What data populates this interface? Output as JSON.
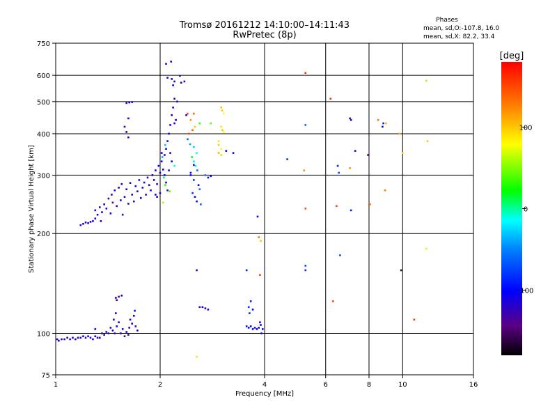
{
  "chart_data": {
    "type": "scatter",
    "title": "Tromsø 20161212 14:10:00–14:11:43",
    "subtitle": "RwPretec (8p)",
    "xlabel": "Frequency [MHz]",
    "ylabel": "Stationary phase Virtual Height [km]",
    "x_scale": "log",
    "y_scale": "log",
    "xlim": [
      1,
      16
    ],
    "ylim": [
      75,
      750
    ],
    "x_ticks": [
      1,
      2,
      4,
      6,
      8,
      10,
      16
    ],
    "x_tick_labels": [
      "1",
      "2",
      "4",
      "6",
      "8",
      "10",
      "16"
    ],
    "y_ticks": [
      75,
      100,
      200,
      300,
      400,
      500,
      600,
      750
    ],
    "y_tick_labels": [
      "75",
      "100",
      "200",
      "300",
      "400",
      "500",
      "600",
      "750"
    ],
    "grid": true,
    "phases_box": {
      "title": "Phases",
      "line1": "mean, sd,O:-107.8, 16.0",
      "line2": "mean, sd,X:  82.2, 33.4"
    },
    "colorbar": {
      "label": "[deg]",
      "range": [
        -180,
        180
      ],
      "ticks": [
        100,
        0,
        -100
      ],
      "tick_labels": [
        "100",
        "0",
        "-100"
      ]
    },
    "series": [
      {
        "points": [
          [
            1.01,
            96,
            -112
          ],
          [
            1.02,
            95,
            -118
          ],
          [
            1.04,
            96,
            -108
          ],
          [
            1.06,
            96,
            -120
          ],
          [
            1.08,
            97,
            -115
          ],
          [
            1.1,
            96,
            -110
          ],
          [
            1.12,
            97,
            -122
          ],
          [
            1.14,
            96,
            -105
          ],
          [
            1.16,
            97,
            -118
          ],
          [
            1.18,
            97,
            -112
          ],
          [
            1.2,
            98,
            -108
          ],
          [
            1.22,
            97,
            -125
          ],
          [
            1.24,
            98,
            -115
          ],
          [
            1.26,
            97,
            -110
          ],
          [
            1.28,
            96,
            -118
          ],
          [
            1.3,
            98,
            -112
          ],
          [
            1.32,
            97,
            -108
          ],
          [
            1.34,
            97,
            -120
          ],
          [
            1.3,
            103,
            -112
          ],
          [
            1.36,
            100,
            -115
          ],
          [
            1.38,
            99,
            -118
          ],
          [
            1.4,
            101,
            -110
          ],
          [
            1.42,
            100,
            -122
          ],
          [
            1.44,
            104,
            -116
          ],
          [
            1.46,
            102,
            -108
          ],
          [
            1.47,
            110,
            -125
          ],
          [
            1.48,
            100,
            -130
          ],
          [
            1.49,
            115,
            -112
          ],
          [
            1.5,
            105,
            -106
          ],
          [
            1.52,
            108,
            -115
          ],
          [
            1.54,
            100,
            -118
          ],
          [
            1.56,
            103,
            -110
          ],
          [
            1.58,
            98,
            -120
          ],
          [
            1.6,
            101,
            -112
          ],
          [
            1.62,
            99,
            -126
          ],
          [
            1.63,
            104,
            -116
          ],
          [
            1.64,
            110,
            -108
          ],
          [
            1.66,
            107,
            -112
          ],
          [
            1.68,
            113,
            -102
          ],
          [
            1.69,
            117,
            -98
          ],
          [
            1.7,
            105,
            -118
          ],
          [
            1.72,
            102,
            -110
          ],
          [
            1.49,
            128,
            -112
          ],
          [
            1.5,
            126,
            -150
          ],
          [
            1.52,
            129,
            -130
          ],
          [
            1.55,
            130,
            -108
          ]
        ]
      },
      {
        "points": [
          [
            1.18,
            212,
            -115
          ],
          [
            1.2,
            214,
            -110
          ],
          [
            1.22,
            216,
            -118
          ],
          [
            1.24,
            215,
            -120
          ],
          [
            1.26,
            217,
            -112
          ],
          [
            1.28,
            218,
            -108
          ],
          [
            1.3,
            222,
            -115
          ],
          [
            1.3,
            235,
            -120
          ],
          [
            1.32,
            228,
            -112
          ],
          [
            1.34,
            240,
            -125
          ],
          [
            1.35,
            218,
            -118
          ],
          [
            1.36,
            232,
            -110
          ],
          [
            1.38,
            245,
            -118
          ],
          [
            1.4,
            238,
            -130
          ],
          [
            1.42,
            255,
            -112
          ],
          [
            1.44,
            230,
            -105
          ],
          [
            1.45,
            262,
            -118
          ],
          [
            1.46,
            248,
            -140
          ],
          [
            1.48,
            270,
            -115
          ],
          [
            1.5,
            242,
            -122
          ],
          [
            1.52,
            275,
            -110
          ],
          [
            1.54,
            252,
            -118
          ],
          [
            1.55,
            282,
            -108
          ],
          [
            1.56,
            228,
            -120
          ],
          [
            1.58,
            258,
            -115
          ],
          [
            1.6,
            272,
            -112
          ],
          [
            1.62,
            246,
            -125
          ],
          [
            1.64,
            284,
            -110
          ],
          [
            1.66,
            262,
            -118
          ],
          [
            1.68,
            250,
            -122
          ],
          [
            1.7,
            278,
            -105
          ],
          [
            1.72,
            268,
            -116
          ],
          [
            1.74,
            290,
            -112
          ],
          [
            1.76,
            256,
            -118
          ],
          [
            1.78,
            275,
            -108
          ],
          [
            1.8,
            285,
            -115
          ],
          [
            1.82,
            262,
            -120
          ],
          [
            1.84,
            295,
            -110
          ],
          [
            1.86,
            280,
            -118
          ],
          [
            1.88,
            270,
            -112
          ],
          [
            1.9,
            300,
            -108
          ],
          [
            1.92,
            290,
            -115
          ],
          [
            1.94,
            310,
            -112
          ],
          [
            1.96,
            282,
            -118
          ],
          [
            1.98,
            320,
            -110
          ],
          [
            2.0,
            305,
            -115
          ],
          [
            2.02,
            330,
            -108
          ],
          [
            2.04,
            312,
            -112
          ],
          [
            2.06,
            345,
            -118
          ],
          [
            2.08,
            360,
            -110
          ],
          [
            2.1,
            380,
            -112
          ],
          [
            2.12,
            400,
            -108
          ],
          [
            2.14,
            425,
            -115
          ],
          [
            2.16,
            455,
            -110
          ],
          [
            2.18,
            480,
            -112
          ],
          [
            2.2,
            510,
            -118
          ],
          [
            2.02,
            350,
            -115
          ],
          [
            2.06,
            300,
            -112
          ],
          [
            2.08,
            285,
            -108
          ],
          [
            2.1,
            270,
            -118
          ],
          [
            2.12,
            310,
            -112
          ],
          [
            2.0,
            265,
            -110
          ],
          [
            1.96,
            258,
            -118
          ],
          [
            1.94,
            262,
            -108
          ],
          [
            2.14,
            350,
            -112
          ],
          [
            2.16,
            330,
            -110
          ],
          [
            2.18,
            560,
            -102
          ],
          [
            2.16,
            585,
            -118
          ],
          [
            2.1,
            590,
            -110
          ],
          [
            2.2,
            430,
            -105
          ],
          [
            2.22,
            440,
            -112
          ],
          [
            2.24,
            500,
            -115
          ],
          [
            2.05,
            295,
            10
          ],
          [
            2.07,
            280,
            30
          ],
          [
            2.04,
            248,
            60
          ],
          [
            2.13,
            268,
            40
          ],
          [
            2.2,
            320,
            -10
          ],
          [
            2.03,
            340,
            -40
          ],
          [
            2.07,
            370,
            -30
          ]
        ]
      },
      {
        "points": [
          [
            1.6,
            495,
            -118
          ],
          [
            1.63,
            497,
            -112
          ],
          [
            1.66,
            498,
            -120
          ],
          [
            1.6,
            405,
            -110
          ],
          [
            1.62,
            390,
            -115
          ],
          [
            1.58,
            420,
            -122
          ],
          [
            1.62,
            445,
            -108
          ],
          [
            2.15,
            660,
            -112
          ],
          [
            2.08,
            650,
            -118
          ],
          [
            2.2,
            575,
            -110
          ],
          [
            2.28,
            598,
            -108
          ],
          [
            2.3,
            570,
            -115
          ],
          [
            2.35,
            575,
            -112
          ]
        ]
      },
      {
        "points": [
          [
            2.4,
            460,
            150
          ],
          [
            2.38,
            455,
            -110
          ],
          [
            2.45,
            440,
            120
          ],
          [
            2.5,
            460,
            140
          ],
          [
            2.42,
            400,
            150
          ],
          [
            2.48,
            410,
            140
          ],
          [
            2.52,
            420,
            100
          ],
          [
            2.6,
            430,
            30
          ],
          [
            2.4,
            385,
            -60
          ],
          [
            2.44,
            372,
            -40
          ],
          [
            2.5,
            365,
            -30
          ],
          [
            2.55,
            350,
            -10
          ],
          [
            2.47,
            340,
            20
          ],
          [
            2.5,
            330,
            -20
          ],
          [
            2.53,
            320,
            -5
          ],
          [
            2.56,
            310,
            -60
          ],
          [
            2.45,
            300,
            -100
          ],
          [
            2.5,
            290,
            -80
          ],
          [
            2.58,
            280,
            -110
          ],
          [
            2.6,
            272,
            -60
          ],
          [
            2.48,
            265,
            -80
          ],
          [
            2.52,
            258,
            -100
          ],
          [
            2.55,
            250,
            -110
          ],
          [
            2.62,
            245,
            -60
          ],
          [
            2.7,
            300,
            -50
          ],
          [
            2.75,
            295,
            -90
          ],
          [
            2.8,
            298,
            -100
          ],
          [
            2.45,
            305,
            -110
          ],
          [
            2.5,
            322,
            -115
          ]
        ]
      },
      {
        "points": [
          [
            3.0,
            480,
            100
          ],
          [
            3.02,
            470,
            100
          ],
          [
            3.05,
            460,
            80
          ],
          [
            3.0,
            420,
            90
          ],
          [
            3.02,
            410,
            100
          ],
          [
            3.05,
            405,
            80
          ],
          [
            2.95,
            380,
            90
          ],
          [
            2.95,
            370,
            100
          ],
          [
            3.0,
            360,
            80
          ],
          [
            2.95,
            350,
            110
          ],
          [
            3.0,
            345,
            60
          ],
          [
            3.25,
            350,
            -110
          ],
          [
            3.1,
            355,
            -120
          ],
          [
            2.8,
            430,
            40
          ]
        ]
      },
      {
        "points": [
          [
            2.55,
            155,
            -100
          ],
          [
            2.6,
            120,
            -120
          ],
          [
            2.65,
            120,
            -110
          ],
          [
            2.7,
            119,
            -115
          ],
          [
            2.75,
            118,
            -112
          ],
          [
            2.55,
            85,
            90
          ],
          [
            3.55,
            155,
            -90
          ],
          [
            3.6,
            120,
            -80
          ],
          [
            3.65,
            125,
            -90
          ],
          [
            3.7,
            118,
            -100
          ],
          [
            3.62,
            115,
            -85
          ],
          [
            3.55,
            105,
            -95
          ],
          [
            3.6,
            104,
            -110
          ],
          [
            3.65,
            105,
            -100
          ],
          [
            3.7,
            103,
            -105
          ],
          [
            3.75,
            104,
            -95
          ],
          [
            3.8,
            103,
            -108
          ],
          [
            3.85,
            104,
            -100
          ],
          [
            3.9,
            106,
            -110
          ],
          [
            3.92,
            100,
            -95
          ],
          [
            3.88,
            108,
            -105
          ],
          [
            3.95,
            103,
            -112
          ],
          [
            3.82,
            225,
            -110
          ],
          [
            3.85,
            195,
            130
          ],
          [
            3.9,
            190,
            100
          ],
          [
            3.88,
            150,
            150
          ]
        ]
      },
      {
        "points": [
          [
            4.65,
            335,
            -80
          ],
          [
            5.25,
            610,
            160
          ],
          [
            5.25,
            425,
            -60
          ],
          [
            5.2,
            310,
            120
          ],
          [
            5.25,
            238,
            150
          ],
          [
            5.25,
            160,
            -80
          ],
          [
            5.25,
            155,
            -90
          ],
          [
            6.2,
            510,
            160
          ],
          [
            6.3,
            125,
            150
          ],
          [
            6.45,
            242,
            150
          ],
          [
            6.5,
            320,
            -90
          ],
          [
            6.55,
            305,
            -70
          ],
          [
            6.6,
            172,
            -70
          ],
          [
            7.05,
            445,
            -140
          ],
          [
            7.1,
            440,
            -110
          ],
          [
            7.05,
            315,
            120
          ],
          [
            7.1,
            235,
            -90
          ],
          [
            7.3,
            355,
            -120
          ],
          [
            7.95,
            345,
            -150
          ],
          [
            8.05,
            245,
            140
          ],
          [
            8.5,
            440,
            130
          ],
          [
            8.75,
            420,
            -120
          ],
          [
            8.8,
            430,
            -90
          ],
          [
            8.9,
            270,
            130
          ],
          [
            8.95,
            430,
            110
          ],
          [
            9.8,
            400,
            110
          ],
          [
            10.0,
            350,
            90
          ],
          [
            9.9,
            155,
            -160
          ],
          [
            10.8,
            110,
            160
          ],
          [
            11.7,
            578,
            60
          ],
          [
            11.8,
            380,
            100
          ],
          [
            11.7,
            180,
            70
          ]
        ]
      }
    ]
  }
}
